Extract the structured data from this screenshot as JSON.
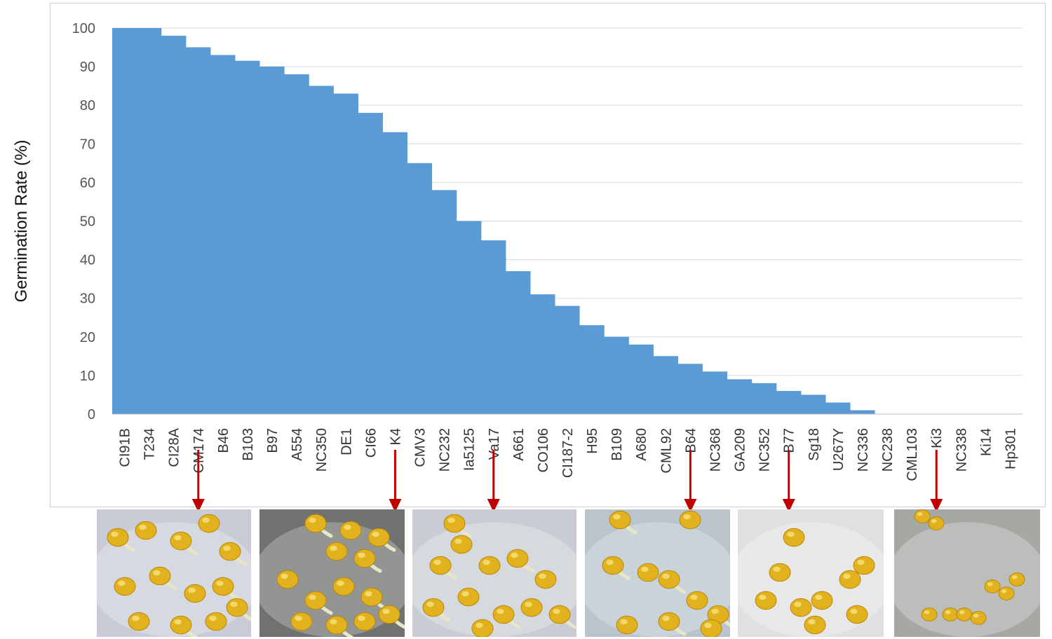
{
  "chart_data": {
    "type": "area",
    "title": "",
    "xlabel": "",
    "ylabel": "Germination Rate (%)",
    "ylim": [
      0,
      100
    ],
    "yticks": [
      0,
      10,
      20,
      30,
      40,
      50,
      60,
      70,
      80,
      90,
      100
    ],
    "grid": true,
    "legend": "none",
    "tick_labels": [
      "CI91B",
      "T234",
      "CI28A",
      "CM174",
      "B46",
      "B103",
      "B97",
      "A554",
      "NC350",
      "DE1",
      "CI66",
      "K4",
      "CMV3",
      "NC232",
      "Ia5125",
      "Va17",
      "A661",
      "CO106",
      "CI187-2",
      "H95",
      "B109",
      "A680",
      "CML92",
      "B64",
      "NC368",
      "GA209",
      "NC352",
      "B77",
      "Sg18",
      "U267Y",
      "NC336",
      "NC238",
      "CML103",
      "Ki3",
      "NC338",
      "Ki14",
      "Hp301"
    ],
    "series": [
      {
        "color": "#5b9bd5",
        "x": [
          "CI91B",
          "T234",
          "CI28A",
          "CM174",
          "B46",
          "B103",
          "B97",
          "A554",
          "NC350",
          "DE1",
          "CI66",
          "K4",
          "CMV3",
          "NC232",
          "Ia5125",
          "Va17",
          "A661",
          "CO106",
          "CI187-2",
          "H95",
          "B109",
          "A680",
          "CML92",
          "B64",
          "NC368",
          "GA209",
          "NC352",
          "B77",
          "Sg18",
          "U267Y",
          "NC336",
          "NC238",
          "CML103",
          "Ki3",
          "NC338",
          "Ki14",
          "Hp301"
        ],
        "values": [
          100,
          100,
          98,
          95,
          93,
          91.5,
          90,
          88,
          85,
          83,
          78,
          73,
          65,
          58,
          50,
          45,
          37,
          31,
          28,
          23,
          20,
          18,
          15,
          13,
          11,
          9,
          8,
          6,
          5,
          3,
          1,
          0,
          0,
          0,
          0,
          0,
          0
        ]
      }
    ],
    "arrows_at": [
      "CM174",
      "K4",
      "Va17",
      "B64",
      "B77",
      "Ki3"
    ],
    "arrow_color": "#c00000"
  }
}
